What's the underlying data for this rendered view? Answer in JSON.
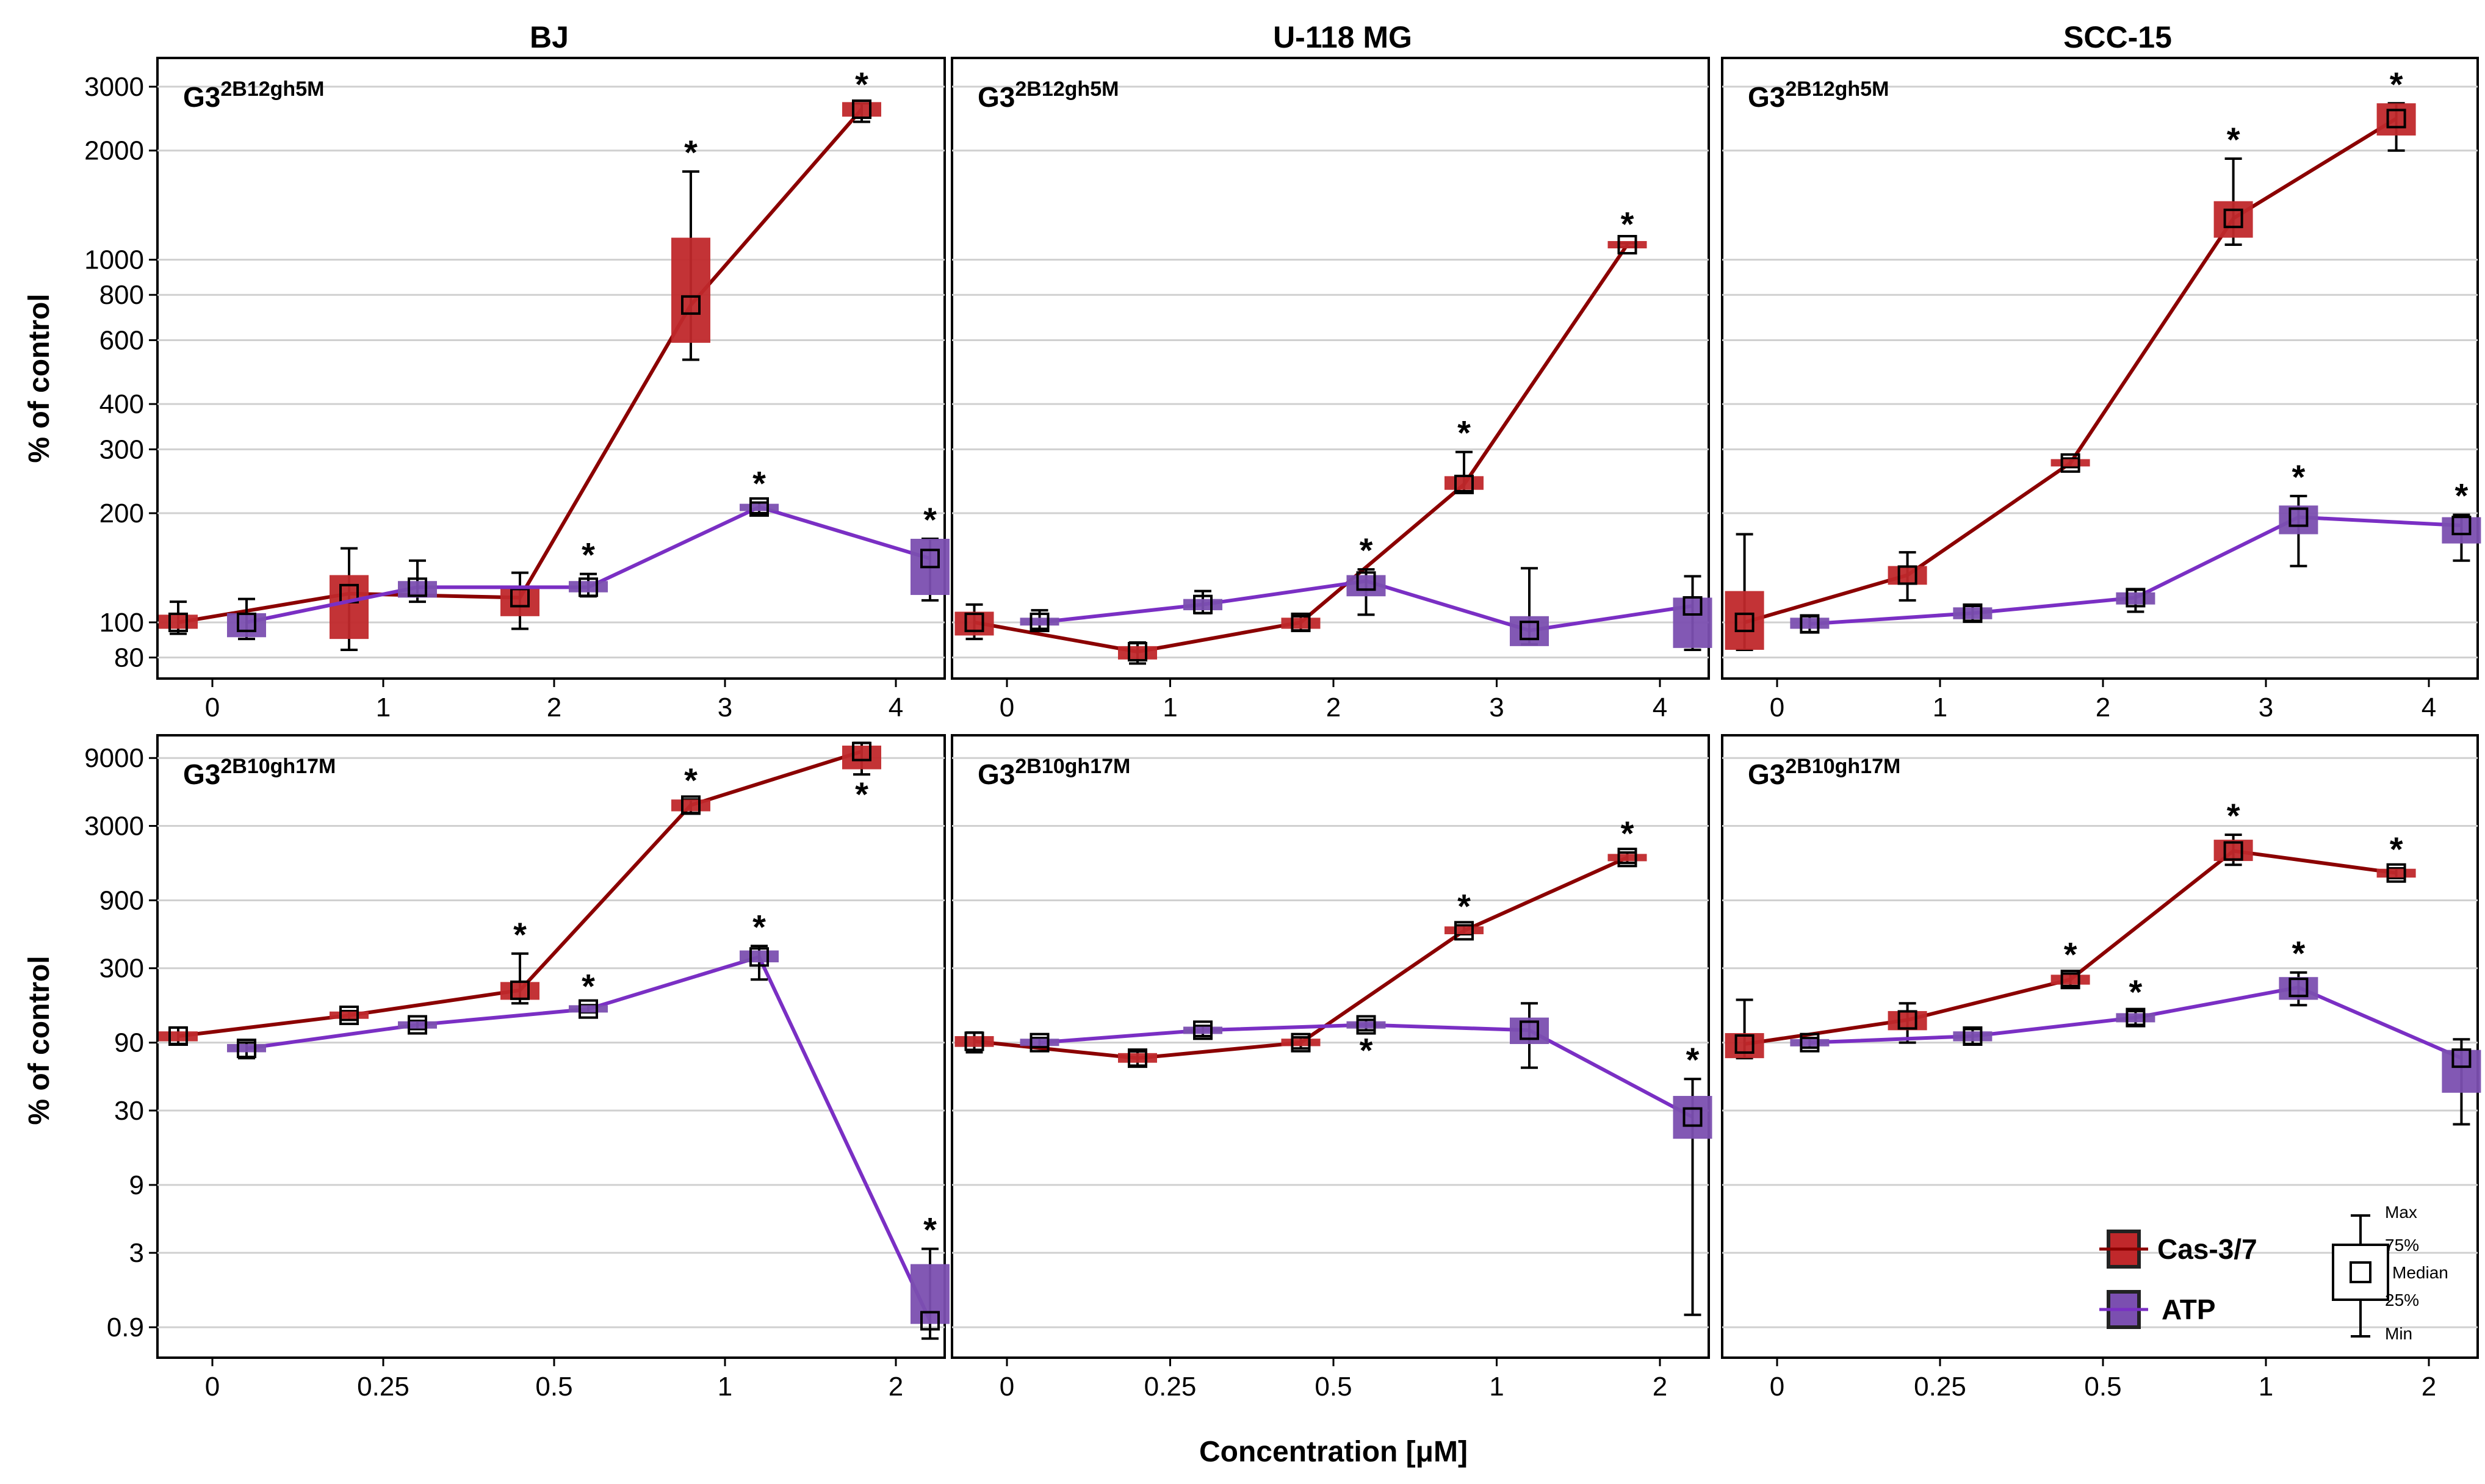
{
  "figure": {
    "y_axis_label": "% of control",
    "x_axis_label": "Concentration [μM]",
    "column_titles": [
      "BJ",
      "U-118 MG",
      "SCC-15"
    ],
    "legend": {
      "items": [
        {
          "label": "Cas-3/7",
          "color": "#c0282b",
          "line": "#8b0000"
        },
        {
          "label": "ATP",
          "color": "#7b4fb0",
          "line": "#7a2fc4"
        }
      ],
      "key_labels": [
        "Max",
        "75%",
        "Median",
        "25%",
        "Min"
      ]
    }
  },
  "chart_data": [
    {
      "type": "line",
      "row": 0,
      "col": 0,
      "cell": "BJ",
      "compound": {
        "base": "G3",
        "sup": "2B12gh5M"
      },
      "categories": [
        "0",
        "1",
        "2",
        "3",
        "4"
      ],
      "yscale": "log",
      "ylim": [
        70,
        3600
      ],
      "yticks": [
        80,
        100,
        200,
        300,
        400,
        600,
        800,
        1000,
        2000,
        3000
      ],
      "series": [
        {
          "name": "Cas-3/7",
          "median": [
            100,
            120,
            117,
            750,
            2600
          ],
          "q1": [
            96,
            90,
            104,
            590,
            2480
          ],
          "q3": [
            105,
            135,
            124,
            1150,
            2720
          ],
          "min": [
            93,
            84,
            96,
            530,
            2400
          ],
          "max": [
            114,
            160,
            137,
            1750,
            2700
          ],
          "sig": [
            false,
            false,
            false,
            true,
            true
          ],
          "sig_pos": [
            "above",
            "above",
            "above",
            "above",
            "above"
          ]
        },
        {
          "name": "ATP",
          "median": [
            100,
            125,
            125,
            208,
            150
          ],
          "q1": [
            91,
            117,
            121,
            203,
            119
          ],
          "q3": [
            106,
            130,
            130,
            212,
            170
          ],
          "min": [
            90,
            114,
            118,
            200,
            115
          ],
          "max": [
            116,
            148,
            136,
            214,
            170
          ],
          "sig": [
            false,
            false,
            true,
            true,
            true
          ],
          "sig_pos": [
            "above",
            "above",
            "above",
            "above",
            "above"
          ]
        }
      ]
    },
    {
      "type": "line",
      "row": 0,
      "col": 1,
      "cell": "U-118 MG",
      "compound": {
        "base": "G3",
        "sup": "2B12gh5M"
      },
      "categories": [
        "0",
        "1",
        "2",
        "3",
        "4"
      ],
      "yscale": "log",
      "ylim": [
        70,
        3600
      ],
      "yticks": [
        80,
        100,
        200,
        300,
        400,
        600,
        800,
        1000,
        2000,
        3000
      ],
      "series": [
        {
          "name": "Cas-3/7",
          "median": [
            100,
            83,
            100,
            240,
            1100
          ],
          "q1": [
            92,
            79,
            96,
            232,
            1090
          ],
          "q3": [
            107,
            86,
            103,
            253,
            1110
          ],
          "min": [
            90,
            77,
            95,
            230,
            1085
          ],
          "max": [
            112,
            88,
            104,
            295,
            1110
          ],
          "sig": [
            false,
            false,
            false,
            true,
            true
          ],
          "sig_pos": [
            "above",
            "above",
            "above",
            "above",
            "above"
          ]
        },
        {
          "name": "ATP",
          "median": [
            100,
            112,
            130,
            95,
            111
          ],
          "q1": [
            98,
            108,
            118,
            86,
            85
          ],
          "q3": [
            103,
            116,
            135,
            104,
            117
          ],
          "min": [
            96,
            106,
            105,
            87,
            84
          ],
          "max": [
            108,
            122,
            140,
            141,
            134
          ],
          "sig": [
            false,
            false,
            true,
            false,
            false
          ],
          "sig_pos": [
            "above",
            "above",
            "above",
            "above",
            "above"
          ]
        }
      ]
    },
    {
      "type": "line",
      "row": 0,
      "col": 2,
      "cell": "SCC-15",
      "compound": {
        "base": "G3",
        "sup": "2B12gh5M"
      },
      "categories": [
        "0",
        "1",
        "2",
        "3",
        "4"
      ],
      "yscale": "log",
      "ylim": [
        70,
        3600
      ],
      "yticks": [
        80,
        100,
        200,
        300,
        400,
        600,
        800,
        1000,
        2000,
        3000
      ],
      "series": [
        {
          "name": "Cas-3/7",
          "median": [
            100,
            135,
            275,
            1300,
            2450
          ],
          "q1": [
            84,
            127,
            270,
            1150,
            2200
          ],
          "q3": [
            122,
            143,
            281,
            1450,
            2700
          ],
          "min": [
            84,
            115,
            268,
            1100,
            2000
          ],
          "max": [
            175,
            156,
            283,
            1900,
            2700
          ],
          "sig": [
            false,
            false,
            false,
            true,
            true
          ],
          "sig_pos": [
            "above",
            "above",
            "above",
            "above",
            "above"
          ]
        },
        {
          "name": "ATP",
          "median": [
            99,
            106,
            117,
            195,
            185
          ],
          "q1": [
            96,
            102,
            112,
            175,
            165
          ],
          "q3": [
            103,
            110,
            121,
            210,
            195
          ],
          "min": [
            94,
            101,
            107,
            143,
            148
          ],
          "max": [
            104,
            111,
            123,
            223,
            198
          ],
          "sig": [
            false,
            false,
            false,
            true,
            true
          ],
          "sig_pos": [
            "above",
            "above",
            "above",
            "above",
            "above"
          ]
        }
      ]
    },
    {
      "type": "line",
      "row": 1,
      "col": 0,
      "cell": "BJ",
      "compound": {
        "base": "G3",
        "sup": "2B10gh17M"
      },
      "categories": [
        "0",
        "0.25",
        "0.5",
        "1",
        "2"
      ],
      "yscale": "log",
      "ylim": [
        0.55,
        13000
      ],
      "yticks": [
        0.9,
        3,
        9,
        30,
        90,
        300,
        900,
        3000,
        9000
      ],
      "series": [
        {
          "name": "Cas-3/7",
          "median": [
            100,
            140,
            210,
            4200,
            10000
          ],
          "q1": [
            92,
            133,
            180,
            3800,
            7500
          ],
          "q3": [
            108,
            148,
            240,
            4600,
            11000
          ],
          "min": [
            88,
            130,
            170,
            3700,
            6900
          ],
          "max": [
            115,
            150,
            380,
            4600,
            11500
          ],
          "sig": [
            false,
            false,
            true,
            true,
            true
          ],
          "sig_pos": [
            "above",
            "above",
            "above",
            "above",
            "below"
          ]
        },
        {
          "name": "ATP",
          "median": [
            82,
            120,
            155,
            360,
            1.0
          ],
          "q1": [
            77,
            113,
            149,
            330,
            0.95
          ],
          "q3": [
            88,
            127,
            162,
            400,
            2.5
          ],
          "min": [
            70,
            112,
            147,
            250,
            0.75
          ],
          "max": [
            90,
            128,
            165,
            430,
            3.2
          ],
          "sig": [
            false,
            false,
            true,
            true,
            true
          ],
          "sig_pos": [
            "above",
            "above",
            "above",
            "above",
            "above"
          ]
        }
      ]
    },
    {
      "type": "line",
      "row": 1,
      "col": 1,
      "cell": "U-118 MG",
      "compound": {
        "base": "G3",
        "sup": "2B10gh17M"
      },
      "categories": [
        "0",
        "0.25",
        "0.5",
        "1",
        "2"
      ],
      "yscale": "log",
      "ylim": [
        0.55,
        13000
      ],
      "yticks": [
        0.9,
        3,
        9,
        30,
        90,
        300,
        900,
        3000,
        9000
      ],
      "series": [
        {
          "name": "Cas-3/7",
          "median": [
            92,
            70,
            90,
            550,
            1800
          ],
          "q1": [
            84,
            65,
            85,
            520,
            1700
          ],
          "q3": [
            100,
            76,
            96,
            590,
            1900
          ],
          "min": [
            77,
            62,
            82,
            520,
            1650
          ],
          "max": [
            106,
            78,
            98,
            600,
            1950
          ],
          "sig": [
            false,
            false,
            false,
            true,
            true
          ],
          "sig_pos": [
            "above",
            "above",
            "above",
            "above",
            "above"
          ]
        },
        {
          "name": "ATP",
          "median": [
            90,
            110,
            120,
            110,
            27
          ],
          "q1": [
            86,
            104,
            114,
            88,
            19
          ],
          "q3": [
            95,
            116,
            126,
            135,
            38
          ],
          "min": [
            84,
            100,
            110,
            60,
            1.1
          ],
          "max": [
            97,
            118,
            130,
            170,
            50
          ],
          "sig": [
            false,
            false,
            true,
            false,
            true
          ],
          "sig_pos": [
            "above",
            "above",
            "below",
            "above",
            "above"
          ]
        }
      ]
    },
    {
      "type": "line",
      "row": 1,
      "col": 2,
      "cell": "SCC-15",
      "compound": {
        "base": "G3",
        "sup": "2B10gh17M"
      },
      "categories": [
        "0",
        "0.25",
        "0.5",
        "1",
        "2"
      ],
      "yscale": "log",
      "ylim": [
        0.55,
        13000
      ],
      "yticks": [
        0.9,
        3,
        9,
        30,
        90,
        300,
        900,
        3000,
        9000
      ],
      "series": [
        {
          "name": "Cas-3/7",
          "median": [
            88,
            130,
            250,
            2000,
            1400
          ],
          "q1": [
            70,
            110,
            230,
            1700,
            1300
          ],
          "q3": [
            105,
            150,
            270,
            2400,
            1500
          ],
          "min": [
            70,
            90,
            225,
            1600,
            1290
          ],
          "max": [
            180,
            170,
            275,
            2600,
            1510
          ],
          "sig": [
            false,
            false,
            true,
            true,
            true
          ],
          "sig_pos": [
            "above",
            "above",
            "above",
            "above",
            "above"
          ]
        },
        {
          "name": "ATP",
          "median": [
            90,
            100,
            135,
            220,
            70
          ],
          "q1": [
            85,
            92,
            125,
            180,
            40
          ],
          "q3": [
            95,
            108,
            145,
            260,
            80
          ],
          "min": [
            83,
            88,
            120,
            165,
            24
          ],
          "max": [
            97,
            112,
            150,
            280,
            95
          ],
          "sig": [
            false,
            false,
            true,
            true,
            false
          ],
          "sig_pos": [
            "above",
            "above",
            "above",
            "above",
            "above"
          ]
        }
      ]
    }
  ]
}
